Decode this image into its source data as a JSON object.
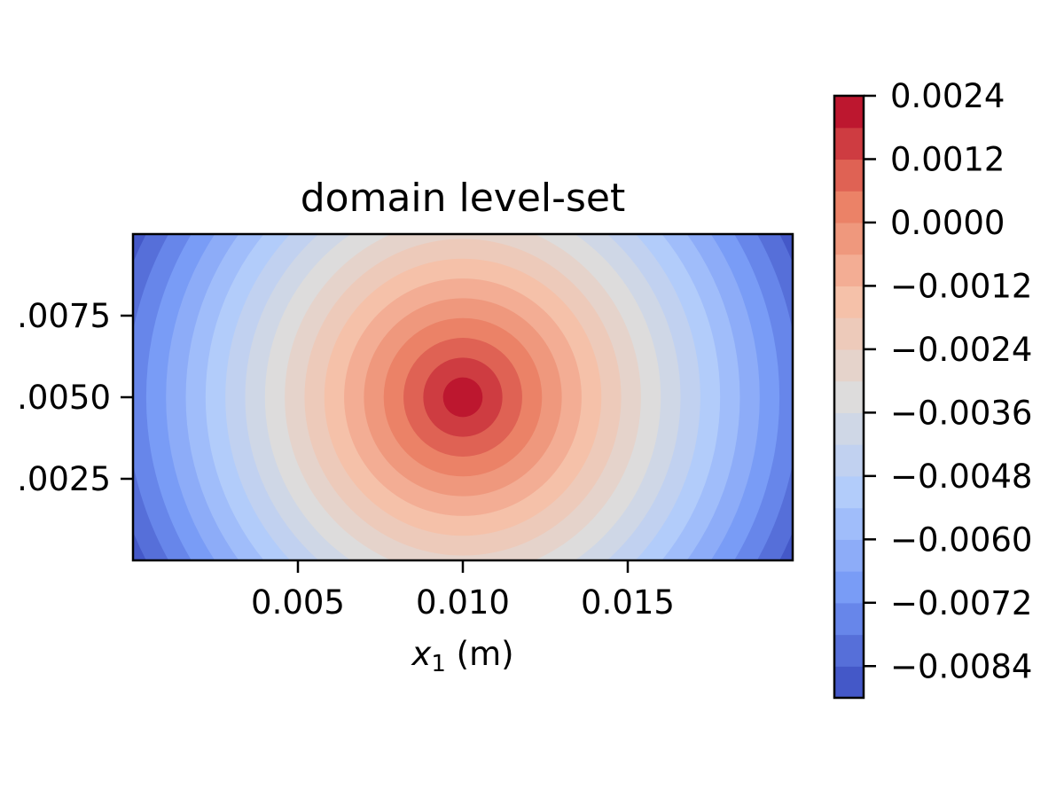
{
  "chart_data": {
    "type": "contourf",
    "title": "domain level-set",
    "xlabel_var": "x",
    "xlabel_sub": "1",
    "xlabel_unit": " (m)",
    "xlim": [
      0.0,
      0.02
    ],
    "ylim": [
      0.0,
      0.01
    ],
    "x_ticks": [
      0.005,
      0.01,
      0.015
    ],
    "x_tick_labels": [
      "0.005",
      "0.010",
      "0.015"
    ],
    "y_ticks": [
      0.0025,
      0.005,
      0.0075
    ],
    "y_tick_labels": [
      ".0025",
      ".0050",
      ".0075"
    ],
    "field": {
      "kind": "radial level-set",
      "center": [
        0.01,
        0.005
      ],
      "value_at_center": 0.0024,
      "slope": -1.0,
      "description": "phi = 0.0024 - sqrt((x-0.010)^2 + (y-0.005)^2)"
    },
    "colormap": "coolwarm",
    "colorbar": {
      "vmin": -0.009,
      "vmax": 0.0024,
      "level_step": 0.0006,
      "ticks": [
        0.0024,
        0.0012,
        0.0,
        -0.0012,
        -0.0024,
        -0.0036,
        -0.0048,
        -0.006,
        -0.0072,
        -0.0084
      ],
      "tick_labels": [
        "0.0024",
        "0.0012",
        "0.0000",
        "−0.0012",
        "−0.0024",
        "−0.0036",
        "−0.0048",
        "−0.0060",
        "−0.0072",
        "−0.0084"
      ],
      "location": "right"
    },
    "colors": {
      "cmap_stops": [
        "#3b4cc0",
        "#7396f5",
        "#b0cbfc",
        "#dddcdc",
        "#f6bfa6",
        "#ea7b60",
        "#b40426"
      ],
      "axis": "#000000",
      "background": "#ffffff"
    }
  }
}
